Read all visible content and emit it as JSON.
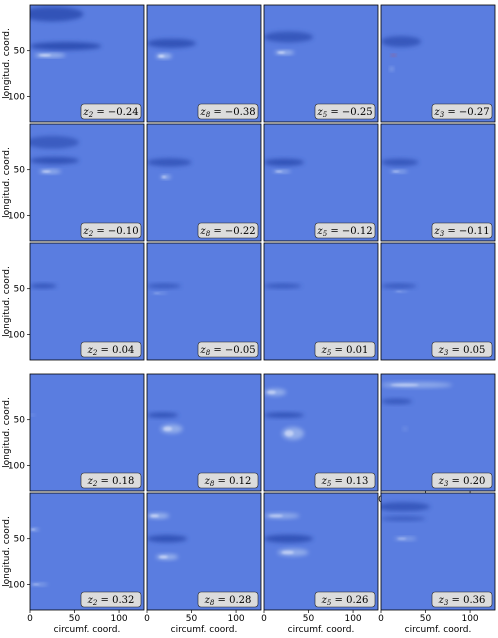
{
  "chart_data": {
    "type": "heatmap",
    "grid_rows": 5,
    "grid_cols": 4,
    "xlabel": "circumf.  coord.",
    "ylabel": "longitud.  coord.",
    "xticks": [
      "0",
      "50",
      "100"
    ],
    "yticks": [
      "50",
      "100"
    ],
    "xlim": [
      0,
      128
    ],
    "ylim": [
      0,
      128
    ],
    "background_color": "#5a7de0",
    "colors": {
      "dark": "#2f4fb4",
      "light": "#b8cdf2",
      "white": "#f4f6ff",
      "hot": "#e04030"
    },
    "panels": [
      {
        "row": 0,
        "col": 0,
        "label": "z_2 = −0.24",
        "var": "z",
        "sub": "2",
        "val": "−0.24"
      },
      {
        "row": 0,
        "col": 1,
        "label": "z_8 = −0.38",
        "var": "z",
        "sub": "8",
        "val": "−0.38"
      },
      {
        "row": 0,
        "col": 2,
        "label": "z_5 = −0.25",
        "var": "z",
        "sub": "5",
        "val": "−0.25"
      },
      {
        "row": 0,
        "col": 3,
        "label": "z_3 = −0.27",
        "var": "z",
        "sub": "3",
        "val": "−0.27"
      },
      {
        "row": 1,
        "col": 0,
        "label": "z_2 = −0.10",
        "var": "z",
        "sub": "2",
        "val": "−0.10"
      },
      {
        "row": 1,
        "col": 1,
        "label": "z_8 = −0.22",
        "var": "z",
        "sub": "8",
        "val": "−0.22"
      },
      {
        "row": 1,
        "col": 2,
        "label": "z_5 = −0.12",
        "var": "z",
        "sub": "5",
        "val": "−0.12"
      },
      {
        "row": 1,
        "col": 3,
        "label": "z_3 = −0.11",
        "var": "z",
        "sub": "3",
        "val": "−0.11"
      },
      {
        "row": 2,
        "col": 0,
        "label": "z_2 = 0.04",
        "var": "z",
        "sub": "2",
        "val": "0.04"
      },
      {
        "row": 2,
        "col": 1,
        "label": "z_8 = −0.05",
        "var": "z",
        "sub": "8",
        "val": "−0.05"
      },
      {
        "row": 2,
        "col": 2,
        "label": "z_5 = 0.01",
        "var": "z",
        "sub": "5",
        "val": "0.01"
      },
      {
        "row": 2,
        "col": 3,
        "label": "z_3 = 0.05",
        "var": "z",
        "sub": "3",
        "val": "0.05"
      },
      {
        "row": 3,
        "col": 0,
        "label": "z_2 = 0.18",
        "var": "z",
        "sub": "2",
        "val": "0.18"
      },
      {
        "row": 3,
        "col": 1,
        "label": "z_8 = 0.12",
        "var": "z",
        "sub": "8",
        "val": "0.12"
      },
      {
        "row": 3,
        "col": 2,
        "label": "z_5 = 0.13",
        "var": "z",
        "sub": "5",
        "val": "0.13"
      },
      {
        "row": 3,
        "col": 3,
        "label": "z_3 = 0.20",
        "var": "z",
        "sub": "3",
        "val": "0.20"
      },
      {
        "row": 4,
        "col": 0,
        "label": "z_2 = 0.32",
        "var": "z",
        "sub": "2",
        "val": "0.32"
      },
      {
        "row": 4,
        "col": 1,
        "label": "z_8 = 0.28",
        "var": "z",
        "sub": "8",
        "val": "0.28"
      },
      {
        "row": 4,
        "col": 2,
        "label": "z_5 = 0.26",
        "var": "z",
        "sub": "5",
        "val": "0.26"
      },
      {
        "row": 4,
        "col": 3,
        "label": "z_3 = 0.36",
        "var": "z",
        "sub": "3",
        "val": "0.36"
      }
    ]
  }
}
